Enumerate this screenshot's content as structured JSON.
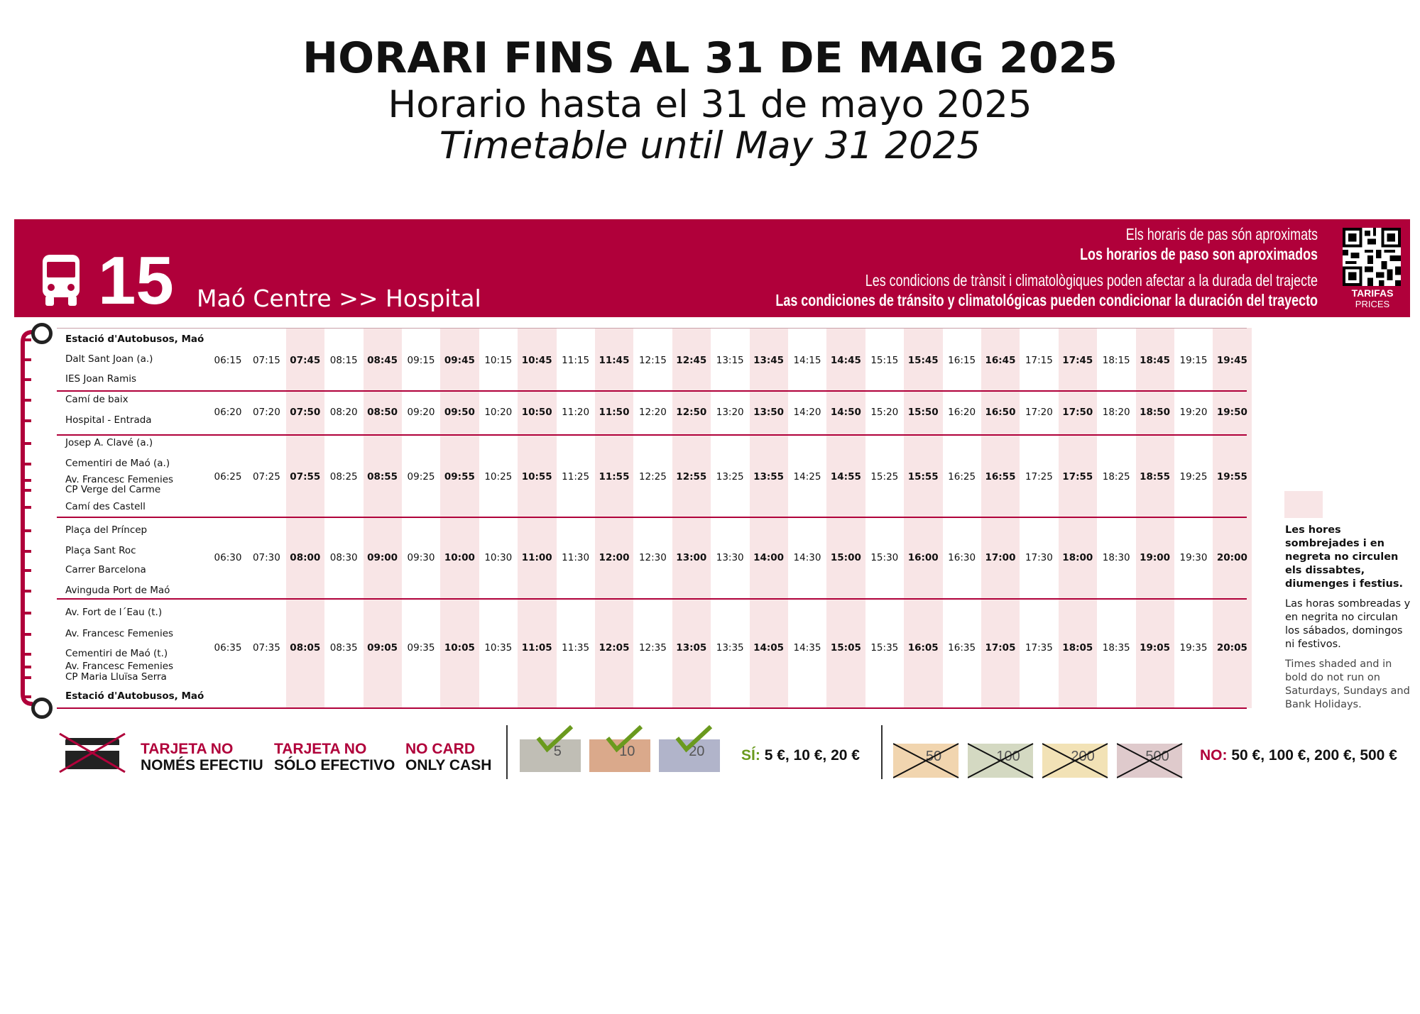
{
  "title": {
    "catalan": "HORARI FINS AL 31 DE MAIG 2025",
    "spanish": "Horario hasta el 31 de mayo 2025",
    "english": "Timetable until May 31 2025"
  },
  "banner": {
    "route_number": "15",
    "route_name": "Maó Centre >> Hospital",
    "note_ca_1": "Els horaris de pas són aproximats",
    "note_es_1": "Los horarios de paso son aproximados",
    "note_ca_2": "Les condicions de trànsit i climatològiques poden afectar a la durada del trajecte",
    "note_es_2": "Las condiciones de tránsito y climatológicas pueden condicionar la duración del trayecto",
    "qr_label_1": "TARIFAS",
    "qr_label_2": "PRICES",
    "color": "#b0003a"
  },
  "stops": [
    {
      "name": "Estació d'Autobusos, Maó",
      "bold": true
    },
    {
      "name": "Dalt Sant Joan (a.)",
      "bold": false
    },
    {
      "name": "IES Joan Ramis",
      "bold": false
    },
    {
      "name": "Camí de baix",
      "bold": false
    },
    {
      "name": "Hospital - Entrada",
      "bold": false
    },
    {
      "name": "Josep A. Clavé (a.)",
      "bold": false
    },
    {
      "name": "Cementiri de Maó (a.)",
      "bold": false
    },
    {
      "name": "Av. Francesc Femenies",
      "bold": false
    },
    {
      "name": "CP Verge del Carme",
      "bold": false
    },
    {
      "name": "Camí des Castell",
      "bold": false
    },
    {
      "name": "Plaça del Príncep",
      "bold": false
    },
    {
      "name": "Plaça Sant Roc",
      "bold": false
    },
    {
      "name": "Carrer Barcelona",
      "bold": false
    },
    {
      "name": "Avinguda Port de Maó",
      "bold": false
    },
    {
      "name": "Av. Fort de l´Eau (t.)",
      "bold": false
    },
    {
      "name": "Av. Francesc Femenies",
      "bold": false
    },
    {
      "name": "Cementiri de Maó (t.)",
      "bold": false
    },
    {
      "name": "Av. Francesc Femenies",
      "bold": false
    },
    {
      "name": "CP Maria Lluïsa Serra",
      "bold": false
    },
    {
      "name": "Estació d'Autobusos, Maó",
      "bold": true
    }
  ],
  "time_rows": [
    [
      "06:15",
      "07:15",
      "07:45",
      "08:15",
      "08:45",
      "09:15",
      "09:45",
      "10:15",
      "10:45",
      "11:15",
      "11:45",
      "12:15",
      "12:45",
      "13:15",
      "13:45",
      "14:15",
      "14:45",
      "15:15",
      "15:45",
      "16:15",
      "16:45",
      "17:15",
      "17:45",
      "18:15",
      "18:45",
      "19:15",
      "19:45"
    ],
    [
      "06:20",
      "07:20",
      "07:50",
      "08:20",
      "08:50",
      "09:20",
      "09:50",
      "10:20",
      "10:50",
      "11:20",
      "11:50",
      "12:20",
      "12:50",
      "13:20",
      "13:50",
      "14:20",
      "14:50",
      "15:20",
      "15:50",
      "16:20",
      "16:50",
      "17:20",
      "17:50",
      "18:20",
      "18:50",
      "19:20",
      "19:50"
    ],
    [
      "06:25",
      "07:25",
      "07:55",
      "08:25",
      "08:55",
      "09:25",
      "09:55",
      "10:25",
      "10:55",
      "11:25",
      "11:55",
      "12:25",
      "12:55",
      "13:25",
      "13:55",
      "14:25",
      "14:55",
      "15:25",
      "15:55",
      "16:25",
      "16:55",
      "17:25",
      "17:55",
      "18:25",
      "18:55",
      "19:25",
      "19:55"
    ],
    [
      "06:30",
      "07:30",
      "08:00",
      "08:30",
      "09:00",
      "09:30",
      "10:00",
      "10:30",
      "11:00",
      "11:30",
      "12:00",
      "12:30",
      "13:00",
      "13:30",
      "14:00",
      "14:30",
      "15:00",
      "15:30",
      "16:00",
      "16:30",
      "17:00",
      "17:30",
      "18:00",
      "18:30",
      "19:00",
      "19:30",
      "20:00"
    ],
    [
      "06:35",
      "07:35",
      "08:05",
      "08:35",
      "09:05",
      "09:35",
      "10:05",
      "10:35",
      "11:05",
      "11:35",
      "12:05",
      "12:35",
      "13:05",
      "13:35",
      "14:05",
      "14:35",
      "15:05",
      "15:35",
      "16:05",
      "16:35",
      "17:05",
      "17:35",
      "18:05",
      "18:35",
      "19:05",
      "19:35",
      "20:05"
    ]
  ],
  "shade_color": "#f8e5e6",
  "legend": {
    "catalan": "Les hores sombrejades i en negreta no circulen els dissabtes, diumenges i festius.",
    "spanish": "Las horas sombreadas y en negrita no circulan los sábados, domingos ni festivos.",
    "english": "Times shaded and in bold do not run on Saturdays, Sundays and Bank Holidays."
  },
  "payment": {
    "no_card_ca_1": "TARJETA NO",
    "no_card_ca_2": "NOMÉS EFECTIU",
    "no_card_es_1": "TARJETA NO",
    "no_card_es_2": "SÓLO EFECTIVO",
    "no_card_en_1": "NO CARD",
    "no_card_en_2": "ONLY CASH",
    "yes_label": "SÍ:",
    "yes_values": "5 €, 10 €, 20 €",
    "no_label": "NO:",
    "no_values": "50 €, 100 €, 200 €, 500 €",
    "accepted_notes": [
      "5",
      "10",
      "20"
    ],
    "rejected_notes": [
      "50",
      "100",
      "200",
      "500"
    ]
  }
}
